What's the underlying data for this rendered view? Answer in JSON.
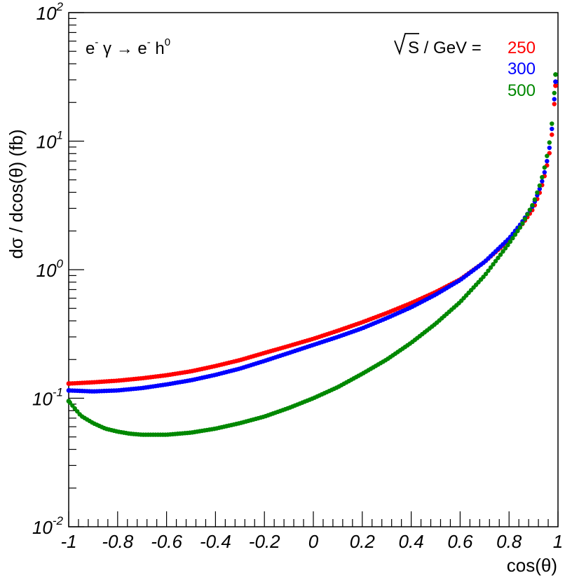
{
  "chart_data": {
    "type": "scatter",
    "xlabel": "cos(θ)",
    "ylabel": "dσ / dcos(θ) (fb)",
    "xlim": [
      -1,
      1
    ],
    "ylim": [
      0.01,
      100
    ],
    "yscale": "log",
    "x_ticks": [
      -1,
      -0.8,
      -0.6,
      -0.4,
      -0.2,
      0,
      0.2,
      0.4,
      0.6,
      0.8,
      1
    ],
    "x_tick_labels": [
      "-1",
      "-0.8",
      "-0.6",
      "-0.4",
      "-0.2",
      "0",
      "0.2",
      "0.4",
      "0.6",
      "0.8",
      "1"
    ],
    "y_ticks": [
      {
        "value": 0.01,
        "base": "10",
        "exp": "-2"
      },
      {
        "value": 0.1,
        "base": "10",
        "exp": "-1"
      },
      {
        "value": 1,
        "base": "10",
        "exp": "0"
      },
      {
        "value": 10,
        "base": "10",
        "exp": "1"
      },
      {
        "value": 100,
        "base": "10",
        "exp": "2"
      }
    ],
    "process": {
      "e1": "e",
      "sup1": "-",
      "gamma": " γ",
      "arrow": " → ",
      "e2": "e",
      "sup2": "-",
      "h": " h",
      "sup3": "0"
    },
    "legend": {
      "prefix": "S",
      "unit": " / GeV = ",
      "placement": "top-right"
    },
    "series": [
      {
        "name": "250",
        "color": "#ff0000",
        "points": [
          [
            -1,
            0.13
          ],
          [
            -0.9,
            0.133
          ],
          [
            -0.8,
            0.137
          ],
          [
            -0.7,
            0.143
          ],
          [
            -0.6,
            0.151
          ],
          [
            -0.5,
            0.162
          ],
          [
            -0.4,
            0.178
          ],
          [
            -0.3,
            0.198
          ],
          [
            -0.2,
            0.225
          ],
          [
            -0.1,
            0.255
          ],
          [
            0,
            0.29
          ],
          [
            0.1,
            0.335
          ],
          [
            0.2,
            0.39
          ],
          [
            0.3,
            0.46
          ],
          [
            0.4,
            0.55
          ],
          [
            0.5,
            0.67
          ],
          [
            0.6,
            0.84
          ],
          [
            0.7,
            1.15
          ],
          [
            0.8,
            1.7
          ],
          [
            0.85,
            2.2
          ],
          [
            0.9,
            3.0
          ],
          [
            0.93,
            4.2
          ],
          [
            0.95,
            5.8
          ],
          [
            0.97,
            9.0
          ],
          [
            0.98,
            14.0
          ],
          [
            0.99,
            27.0
          ]
        ]
      },
      {
        "name": "300",
        "color": "#0000ff",
        "points": [
          [
            -1,
            0.115
          ],
          [
            -0.9,
            0.113
          ],
          [
            -0.8,
            0.115
          ],
          [
            -0.7,
            0.12
          ],
          [
            -0.6,
            0.128
          ],
          [
            -0.5,
            0.138
          ],
          [
            -0.4,
            0.152
          ],
          [
            -0.3,
            0.17
          ],
          [
            -0.2,
            0.195
          ],
          [
            -0.1,
            0.225
          ],
          [
            0,
            0.26
          ],
          [
            0.1,
            0.3
          ],
          [
            0.2,
            0.35
          ],
          [
            0.3,
            0.42
          ],
          [
            0.4,
            0.51
          ],
          [
            0.5,
            0.64
          ],
          [
            0.6,
            0.83
          ],
          [
            0.7,
            1.15
          ],
          [
            0.8,
            1.75
          ],
          [
            0.85,
            2.3
          ],
          [
            0.9,
            3.2
          ],
          [
            0.93,
            4.5
          ],
          [
            0.95,
            6.2
          ],
          [
            0.97,
            10.0
          ],
          [
            0.98,
            15.5
          ],
          [
            0.99,
            29.0
          ]
        ]
      },
      {
        "name": "500",
        "color": "#008800",
        "points": [
          [
            -1,
            0.095
          ],
          [
            -0.95,
            0.073
          ],
          [
            -0.9,
            0.064
          ],
          [
            -0.85,
            0.058
          ],
          [
            -0.8,
            0.055
          ],
          [
            -0.75,
            0.053
          ],
          [
            -0.7,
            0.052
          ],
          [
            -0.65,
            0.052
          ],
          [
            -0.6,
            0.052
          ],
          [
            -0.5,
            0.054
          ],
          [
            -0.4,
            0.058
          ],
          [
            -0.3,
            0.064
          ],
          [
            -0.2,
            0.072
          ],
          [
            -0.1,
            0.084
          ],
          [
            0,
            0.1
          ],
          [
            0.1,
            0.122
          ],
          [
            0.2,
            0.155
          ],
          [
            0.3,
            0.2
          ],
          [
            0.4,
            0.27
          ],
          [
            0.5,
            0.38
          ],
          [
            0.6,
            0.56
          ],
          [
            0.7,
            0.9
          ],
          [
            0.8,
            1.6
          ],
          [
            0.85,
            2.2
          ],
          [
            0.9,
            3.3
          ],
          [
            0.93,
            4.8
          ],
          [
            0.95,
            6.8
          ],
          [
            0.97,
            11.0
          ],
          [
            0.98,
            17.0
          ],
          [
            0.99,
            33.0
          ]
        ]
      }
    ]
  }
}
